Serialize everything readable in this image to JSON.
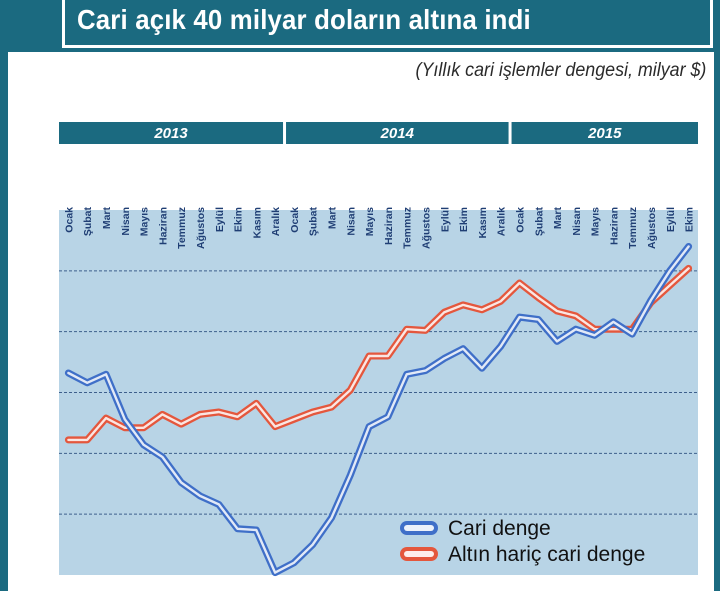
{
  "title": "Cari açık 40 milyar doların altına indi",
  "subtitle": "(Yıllık cari işlemler dengesi, milyar $)",
  "colors": {
    "frame": "#1b6a80",
    "plot_bg": "#b8d4e6",
    "band": "#1b6a80",
    "blue_line": "#3f6fc8",
    "red_line": "#e4573d"
  },
  "chart_data": {
    "type": "line",
    "title": "Cari açık 40 milyar doların altına indi",
    "subtitle": "(Yıllık cari işlemler dengesi, milyar $)",
    "years": [
      "2013",
      "2014",
      "2015"
    ],
    "categories": [
      "Ocak",
      "Şubat",
      "Mart",
      "Nisan",
      "Mayıs",
      "Haziran",
      "Temmuz",
      "Ağustos",
      "Eylül",
      "Ekim",
      "Kasım",
      "Aralık",
      "Ocak",
      "Şubat",
      "Mart",
      "Nisan",
      "Mayıs",
      "Haziran",
      "Temmuz",
      "Ağustos",
      "Eylül",
      "Ekim",
      "Kasım",
      "Aralık",
      "Ocak",
      "Şubat",
      "Mart",
      "Nisan",
      "Mayıs",
      "Haziran",
      "Temmuz",
      "Ağustos",
      "Eylül",
      "Ekim"
    ],
    "ylim": [
      -65,
      -35
    ],
    "yticks": [
      -35,
      -40,
      -45,
      -50,
      -55,
      -60,
      -65
    ],
    "grid": true,
    "legend_position": "bottom-right",
    "series": [
      {
        "name": "Cari denge",
        "color": "#3f6fc8",
        "values": [
          -48.4,
          -49.2,
          -48.5,
          -52.2,
          -54.3,
          -55.3,
          -57.4,
          -58.5,
          -59.2,
          -61.2,
          -61.3,
          -64.8,
          -64.0,
          -62.5,
          -60.3,
          -56.8,
          -52.8,
          -52.0,
          -48.5,
          -48.2,
          -47.2,
          -46.4,
          -48.0,
          -46.2,
          -43.8,
          -44.0,
          -45.8,
          -44.8,
          -45.3,
          -44.2,
          -45.2,
          -42.4,
          -40.0,
          -38.0
        ]
      },
      {
        "name": "Altın hariç cari denge",
        "color": "#e4573d",
        "values": [
          -53.9,
          -53.9,
          -52.1,
          -52.9,
          -52.9,
          -51.8,
          -52.6,
          -51.8,
          -51.6,
          -52.0,
          -50.9,
          -52.8,
          -52.2,
          -51.6,
          -51.2,
          -49.8,
          -47.0,
          -47.0,
          -44.8,
          -44.9,
          -43.4,
          -42.8,
          -43.2,
          -42.5,
          -41.0,
          -42.2,
          -43.3,
          -43.7,
          -44.8,
          -44.8,
          -44.8,
          -42.6,
          -41.2,
          -39.8
        ]
      }
    ]
  }
}
